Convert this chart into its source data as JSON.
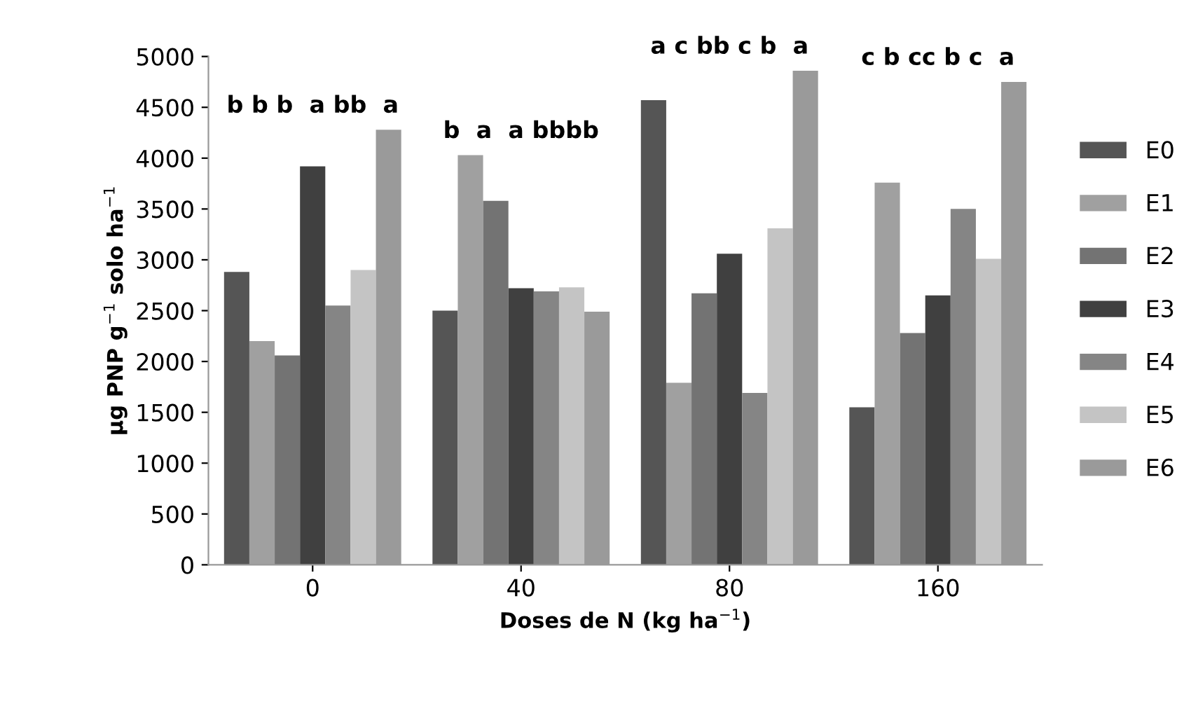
{
  "chart_data": {
    "type": "bar",
    "xlabel": "Doses de N (kg ha$^{−1}$)",
    "ylabel": "µg PNP g$^{−1}$ solo ha$^{−1}$",
    "categories": [
      "0",
      "40",
      "80",
      "160"
    ],
    "series": [
      {
        "name": "E0",
        "color": "#555555",
        "values": [
          2880,
          2500,
          4570,
          1550
        ]
      },
      {
        "name": "E1",
        "color": "#a0a0a0",
        "values": [
          2200,
          4030,
          1790,
          3760
        ]
      },
      {
        "name": "E2",
        "color": "#737373",
        "values": [
          2060,
          3580,
          2670,
          2280
        ]
      },
      {
        "name": "E3",
        "color": "#404040",
        "values": [
          3920,
          2720,
          3060,
          2650
        ]
      },
      {
        "name": "E4",
        "color": "#858585",
        "values": [
          2550,
          2690,
          1690,
          3500
        ]
      },
      {
        "name": "E5",
        "color": "#c4c4c4",
        "values": [
          2900,
          2730,
          3310,
          3010
        ]
      },
      {
        "name": "E6",
        "color": "#9a9a9a",
        "values": [
          4280,
          2490,
          4860,
          4750
        ]
      }
    ],
    "annotations": [
      "b b b  a bb  a",
      "b  a  a bbbb",
      "a c bb c b  a",
      "c b cc b c  a"
    ],
    "ylim": [
      0,
      5000
    ],
    "yticks": [
      0,
      500,
      1000,
      1500,
      2000,
      2500,
      3000,
      3500,
      4000,
      4500,
      5000
    ],
    "grid": false,
    "legend": "right"
  }
}
